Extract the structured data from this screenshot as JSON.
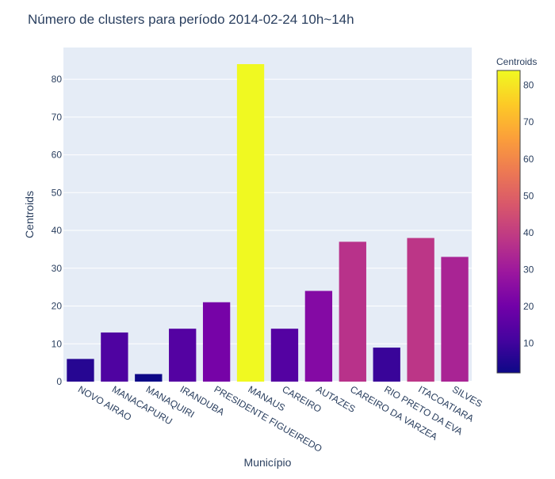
{
  "chart_data": {
    "type": "bar",
    "title": "Número de clusters para período 2014-02-24 10h~14h",
    "xlabel": "Município",
    "ylabel": "Centroids",
    "categories": [
      "NOVO AIRAO",
      "MANACAPURU",
      "MANAQUIRI",
      "IRANDUBA",
      "PRESIDENTE FIGUEIREDO",
      "MANAUS",
      "CAREIRO",
      "AUTAZES",
      "CAREIRO DA VARZEA",
      "RIO PRETO DA EVA",
      "ITACOATIARA",
      "SILVES"
    ],
    "values": [
      6,
      13,
      2,
      14,
      21,
      84,
      14,
      24,
      37,
      9,
      38,
      33
    ],
    "ylim": [
      0,
      88.4
    ],
    "yticks": [
      0,
      10,
      20,
      30,
      40,
      50,
      60,
      70,
      80
    ],
    "grid": true,
    "colorscale": "Plasma",
    "colorbar": {
      "title": "Centroids",
      "min": 2,
      "max": 84,
      "ticks": [
        10,
        20,
        30,
        40,
        50,
        60,
        70,
        80
      ]
    },
    "plot_background": "#E5ECF6"
  }
}
